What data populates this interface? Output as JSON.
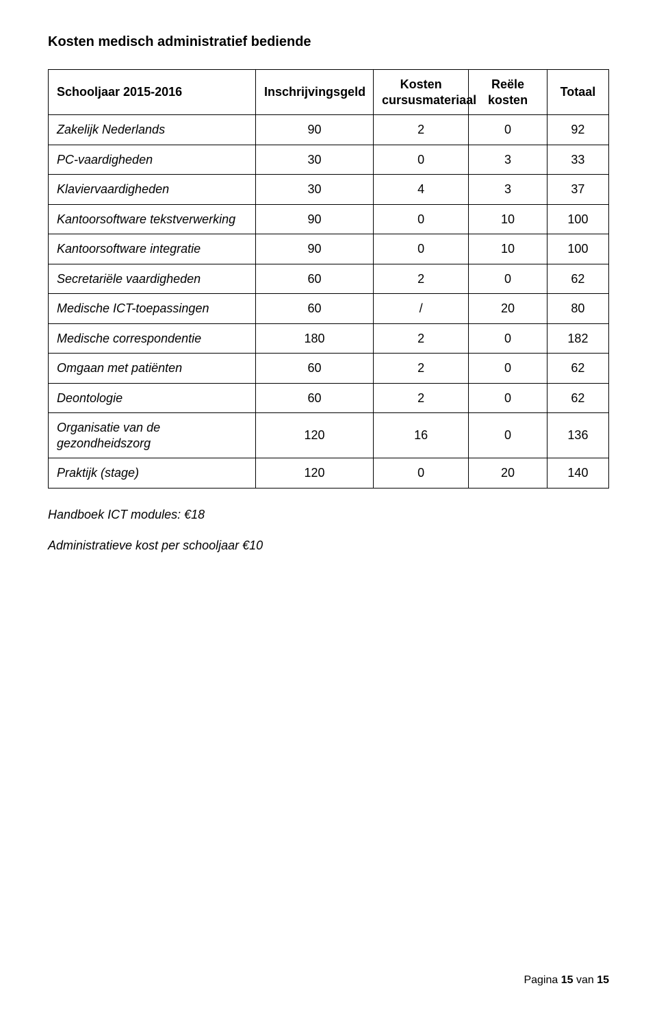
{
  "title": "Kosten medisch administratief bediende",
  "table": {
    "columns": [
      {
        "label": "Schooljaar 2015-2016",
        "align": "left"
      },
      {
        "label": "Inschrijvingsgeld",
        "align": "center"
      },
      {
        "label": "Kosten cursusmateriaal",
        "align": "center"
      },
      {
        "label": "Reële kosten",
        "align": "center"
      },
      {
        "label": "Totaal",
        "align": "center"
      }
    ],
    "rows": [
      {
        "label": "Zakelijk Nederlands",
        "v": [
          "90",
          "2",
          "0",
          "92"
        ]
      },
      {
        "label": "PC-vaardigheden",
        "v": [
          "30",
          "0",
          "3",
          "33"
        ]
      },
      {
        "label": "Klaviervaardigheden",
        "v": [
          "30",
          "4",
          "3",
          "37"
        ]
      },
      {
        "label": "Kantoorsoftware tekstverwerking",
        "v": [
          "90",
          "0",
          "10",
          "100"
        ]
      },
      {
        "label": "Kantoorsoftware integratie",
        "v": [
          "90",
          "0",
          "10",
          "100"
        ]
      },
      {
        "label": "Secretariële vaardigheden",
        "v": [
          "60",
          "2",
          "0",
          "62"
        ]
      },
      {
        "label": "Medische ICT-toepassingen",
        "v": [
          "60",
          "/",
          "20",
          "80"
        ]
      },
      {
        "label": "Medische correspondentie",
        "v": [
          "180",
          "2",
          "0",
          "182"
        ]
      },
      {
        "label": "Omgaan met patiënten",
        "v": [
          "60",
          "2",
          "0",
          "62"
        ]
      },
      {
        "label": "Deontologie",
        "v": [
          "60",
          "2",
          "0",
          "62"
        ]
      },
      {
        "label": "Organisatie van de gezondheidszorg",
        "v": [
          "120",
          "16",
          "0",
          "136"
        ]
      },
      {
        "label": "Praktijk (stage)",
        "v": [
          "120",
          "0",
          "20",
          "140"
        ]
      }
    ]
  },
  "notes": [
    "Handboek ICT modules: €18",
    "Administratieve kost per schooljaar  €10"
  ],
  "footer": {
    "prefix": "Pagina ",
    "current": "15",
    "middle": " van ",
    "total": "15"
  },
  "style": {
    "font_family": "Segoe UI",
    "title_fontsize": 20,
    "body_fontsize": 18,
    "footer_fontsize": 16,
    "text_color": "#000000",
    "border_color": "#000000",
    "background_color": "#ffffff"
  }
}
